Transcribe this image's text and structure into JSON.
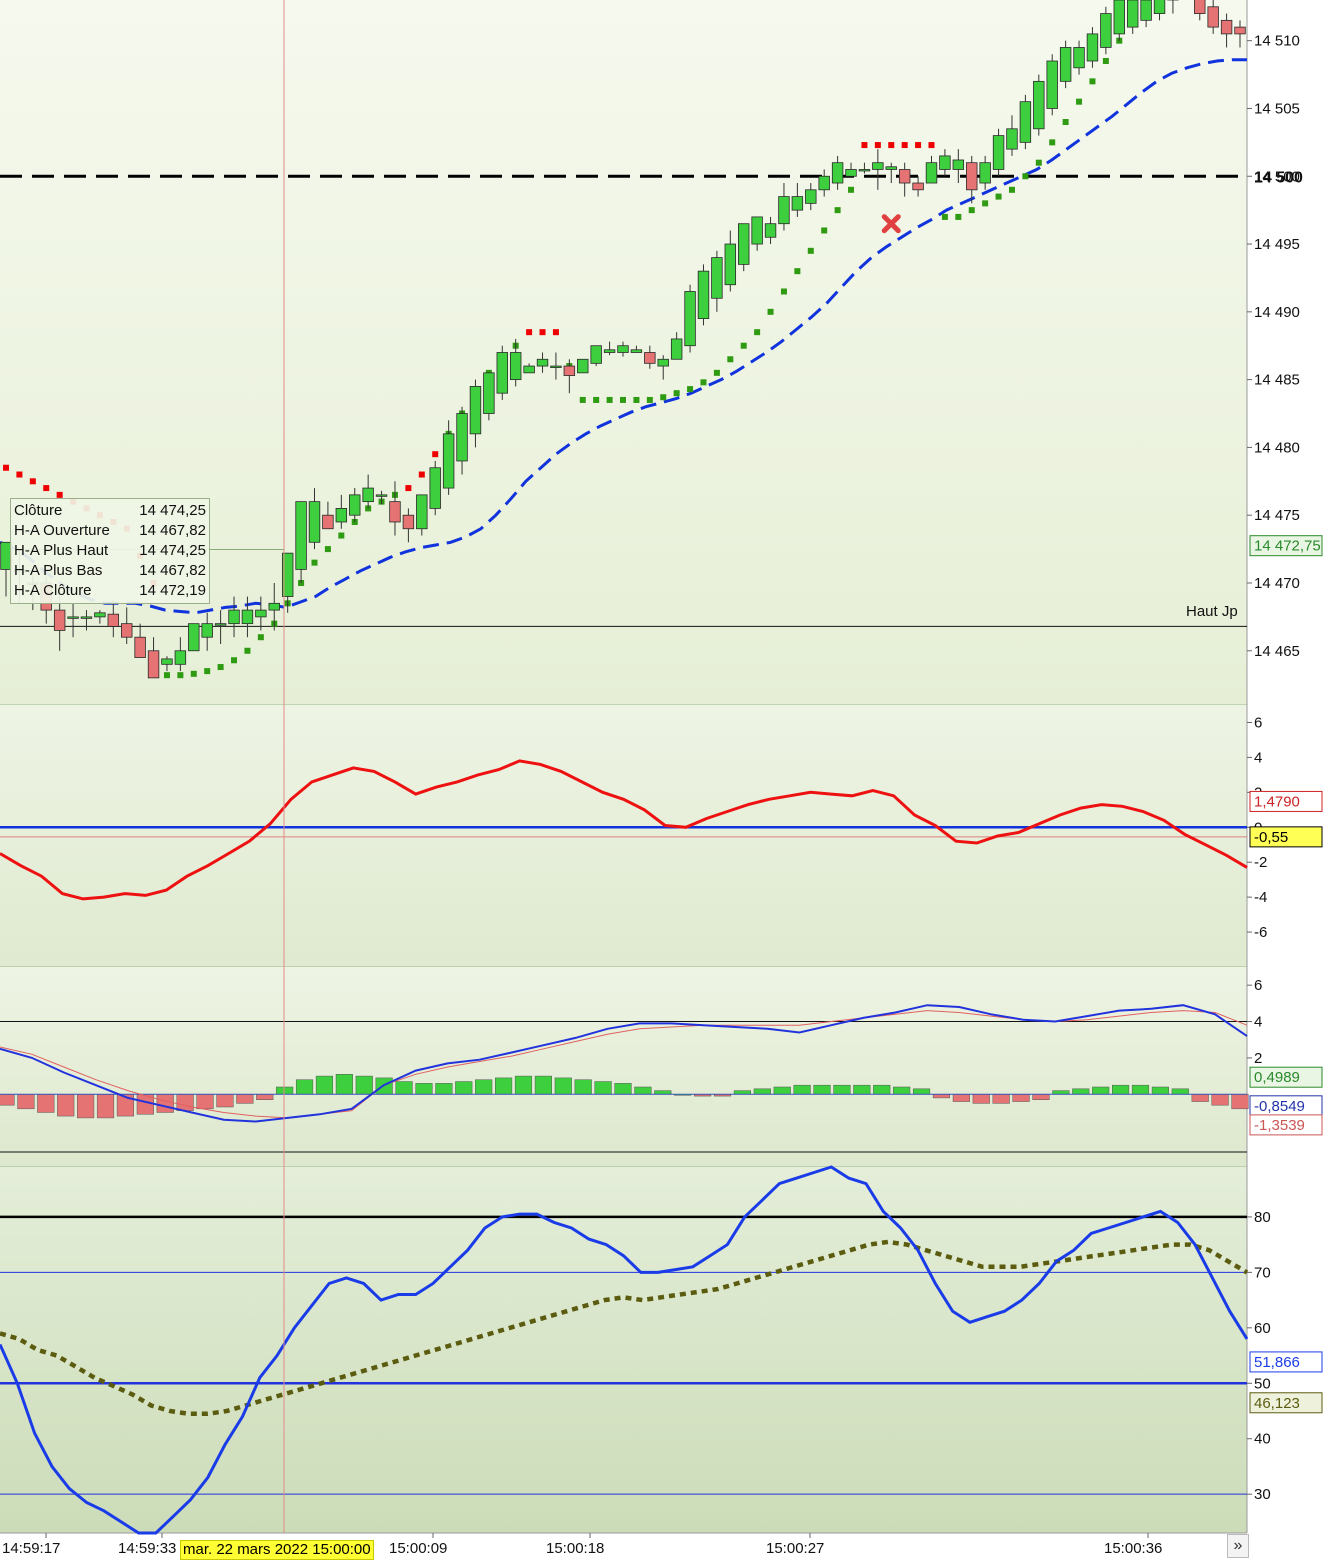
{
  "chart_data": [
    {
      "type": "candlestick",
      "name": "Heikin-Ashi price",
      "ylim": [
        14461,
        14513
      ],
      "yticks": [
        14465,
        14470,
        14475,
        14480,
        14485,
        14490,
        14495,
        14500,
        14505,
        14510
      ],
      "ytick_labels": [
        "14 465",
        "14 470",
        "14 475",
        "14 480",
        "14 485",
        "14 490",
        "14 495",
        "14 500",
        "14 505",
        "14 510"
      ],
      "bold_level": {
        "value": 14500,
        "label": "14 500"
      },
      "reference_level": {
        "value": 14466.8,
        "label": "Haut Jp"
      },
      "last_price_tag": "14 472,75",
      "candles": [
        [
          14471,
          14473,
          14469,
          14473
        ],
        [
          14471,
          14472.5,
          14468.5,
          14471
        ],
        [
          14470,
          14471,
          14468,
          14470
        ],
        [
          14470,
          14470.5,
          14467,
          14468
        ],
        [
          14468,
          14469,
          14465,
          14466.5
        ],
        [
          14467.5,
          14468.5,
          14466,
          14467.5
        ],
        [
          14467.5,
          14468,
          14466.5,
          14467.5
        ],
        [
          14467.5,
          14468,
          14467,
          14467.8
        ],
        [
          14467.7,
          14468.8,
          14466,
          14466.8
        ],
        [
          14467,
          14468.2,
          14465.5,
          14466
        ],
        [
          14466,
          14467,
          14464.5,
          14464.5
        ],
        [
          14465,
          14466,
          14463,
          14463
        ],
        [
          14464,
          14464.6,
          14463.5,
          14464.4
        ],
        [
          14464,
          14466,
          14463.5,
          14465
        ],
        [
          14465,
          14467,
          14465,
          14467
        ],
        [
          14466,
          14467.8,
          14465,
          14467
        ],
        [
          14467,
          14468,
          14465.5,
          14467
        ],
        [
          14467,
          14469,
          14466,
          14468
        ],
        [
          14467,
          14469,
          14466,
          14468
        ],
        [
          14467.5,
          14469,
          14466.5,
          14468
        ],
        [
          14468,
          14470,
          14466.5,
          14468.5
        ],
        [
          14469,
          14472,
          14467.8,
          14472.2
        ],
        [
          14471,
          14476,
          14470,
          14476
        ],
        [
          14473,
          14477,
          14472.5,
          14476
        ],
        [
          14475,
          14476,
          14474,
          14474
        ],
        [
          14474.5,
          14476.5,
          14474,
          14475.5
        ],
        [
          14475,
          14477,
          14474.5,
          14476.5
        ],
        [
          14476,
          14478,
          14475.5,
          14477
        ],
        [
          14476.5,
          14476.8,
          14475.8,
          14476.5
        ],
        [
          14476,
          14477.5,
          14473.5,
          14474.5
        ],
        [
          14475,
          14475.5,
          14473,
          14474
        ],
        [
          14474,
          14476.5,
          14473.5,
          14476.5
        ],
        [
          14475.5,
          14479,
          14475,
          14478.5
        ],
        [
          14477,
          14482,
          14476.5,
          14481
        ],
        [
          14479,
          14483,
          14478,
          14482.5
        ],
        [
          14481,
          14485,
          14480,
          14484.5
        ],
        [
          14482.5,
          14485.5,
          14482,
          14485.5
        ],
        [
          14484,
          14487.5,
          14483.5,
          14487
        ],
        [
          14485,
          14488,
          14484.5,
          14487
        ],
        [
          14485.5,
          14486.2,
          14485.5,
          14486
        ],
        [
          14486,
          14487,
          14485.5,
          14486.5
        ],
        [
          14486,
          14487,
          14485,
          14486
        ],
        [
          14486,
          14486.5,
          14484,
          14485.3
        ],
        [
          14485.5,
          14486.5,
          14485.5,
          14486.5
        ],
        [
          14486.2,
          14487.5,
          14486,
          14487.5
        ],
        [
          14487,
          14487.8,
          14486.8,
          14487.2
        ],
        [
          14487,
          14487.8,
          14486.7,
          14487.5
        ],
        [
          14487,
          14487.5,
          14487,
          14487.2
        ],
        [
          14487,
          14487.5,
          14485.8,
          14486.2
        ],
        [
          14486,
          14486.8,
          14485,
          14486.5
        ],
        [
          14486.5,
          14488.5,
          14486.5,
          14488
        ],
        [
          14487.5,
          14492,
          14487,
          14491.5
        ],
        [
          14489.5,
          14493.5,
          14489,
          14493
        ],
        [
          14491,
          14494.5,
          14490,
          14494
        ],
        [
          14492,
          14496,
          14491.5,
          14495
        ],
        [
          14493.5,
          14496.5,
          14493,
          14496.5
        ],
        [
          14495,
          14497,
          14494.5,
          14497
        ],
        [
          14495.5,
          14497,
          14495,
          14496.5
        ],
        [
          14496.5,
          14499.5,
          14496,
          14498.5
        ],
        [
          14497.5,
          14499.5,
          14497,
          14498.5
        ],
        [
          14498,
          14499.5,
          14497.5,
          14499
        ],
        [
          14499,
          14500.5,
          14498.5,
          14500
        ],
        [
          14499.5,
          14501.5,
          14499,
          14501
        ],
        [
          14500,
          14501,
          14500,
          14500.5
        ],
        [
          14500.5,
          14501,
          14500.2,
          14500.5
        ],
        [
          14500.5,
          14502,
          14499,
          14501
        ],
        [
          14500.5,
          14501,
          14499.5,
          14500.7
        ],
        [
          14500.5,
          14501,
          14498.5,
          14499.5
        ],
        [
          14499.5,
          14500,
          14498.5,
          14499
        ],
        [
          14499.5,
          14501.5,
          14499.5,
          14501
        ],
        [
          14500.5,
          14502,
          14500,
          14501.5
        ],
        [
          14500.5,
          14502,
          14499.5,
          14501.2
        ],
        [
          14501,
          14501.5,
          14498,
          14499
        ],
        [
          14499.5,
          14501.5,
          14499,
          14501
        ],
        [
          14500.5,
          14503.5,
          14500,
          14503
        ],
        [
          14502,
          14504.5,
          14501.5,
          14503.5
        ],
        [
          14502.5,
          14506,
          14502,
          14505.5
        ],
        [
          14503.5,
          14507.5,
          14503,
          14507
        ],
        [
          14505,
          14509,
          14504.5,
          14508.5
        ],
        [
          14507,
          14510,
          14506.5,
          14509.5
        ],
        [
          14508,
          14510,
          14507.5,
          14509.5
        ],
        [
          14508.5,
          14511,
          14508,
          14510.5
        ],
        [
          14509.5,
          14512.5,
          14509,
          14512
        ],
        [
          14510.5,
          14513,
          14510,
          14513
        ],
        [
          14511,
          14513,
          14510.5,
          14513
        ],
        [
          14511.5,
          14513.5,
          14511,
          14513
        ],
        [
          14512,
          14513.5,
          14511.5,
          14513.5
        ],
        [
          14513,
          14513.5,
          14512,
          14513.5
        ],
        [
          14513.5,
          14514,
          14513,
          14513.5
        ],
        [
          14513.5,
          14513.5,
          14511.5,
          14512
        ],
        [
          14512.5,
          14513,
          14510.5,
          14511
        ],
        [
          14511.5,
          14512,
          14509.5,
          14510.5
        ],
        [
          14511,
          14511.5,
          14509.5,
          14510.5
        ]
      ],
      "sar_values": [
        14478.5,
        14478,
        14477.5,
        14477,
        14476.5,
        14476,
        14475.5,
        14475,
        14474.5,
        14474,
        14472,
        14470,
        14463.2,
        14463.2,
        14463.3,
        14463.5,
        14463.8,
        14464.3,
        14465,
        14466,
        14467,
        14468.5,
        14470,
        14471.5,
        14472.5,
        14473.5,
        14474.5,
        14475.5,
        14476,
        14476.5,
        14477,
        14478,
        14479.5,
        14481,
        14482.5,
        14484,
        14485.5,
        14486.5,
        14487.5,
        14488.5,
        14488.5,
        14488.5,
        14486,
        14483.5,
        14483.5,
        14483.5,
        14483.5,
        14483.5,
        14483.5,
        14483.7,
        14484,
        14484.3,
        14484.8,
        14485.5,
        14486.5,
        14487.5,
        14488.5,
        14490,
        14491.5,
        14493,
        14494.5,
        14496,
        14497.5,
        14499,
        14502.3,
        14502.3,
        14502.3,
        14502.3,
        14502.3,
        14502.3,
        14497,
        14497,
        14497.5,
        14498,
        14498.5,
        14499,
        14500,
        14501,
        14502.5,
        14504,
        14505.5,
        14507,
        14508.5,
        14510,
        14511.5,
        14513,
        14514,
        14514,
        14514,
        14514,
        14514,
        14514,
        14514
      ],
      "moving_average": [
        14473,
        14472.5,
        14471.8,
        14470.8,
        14470,
        14469.3,
        14468.8,
        14468.5,
        14468.5,
        14468.5,
        14468.3,
        14468,
        14467.9,
        14467.8,
        14468,
        14468.2,
        14468.3,
        14468.5,
        14468.4,
        14468.2,
        14468.6,
        14469,
        14469.7,
        14470.3,
        14470.9,
        14471.4,
        14471.9,
        14472.3,
        14472.6,
        14472.8,
        14473,
        14473.4,
        14474,
        14475,
        14476.2,
        14477.5,
        14478.5,
        14479.5,
        14480.3,
        14481,
        14481.6,
        14482.1,
        14482.6,
        14483,
        14483.3,
        14483.6,
        14484,
        14484.5,
        14485,
        14485.6,
        14486.3,
        14487,
        14487.8,
        14488.7,
        14489.6,
        14490.6,
        14491.8,
        14493,
        14494,
        14494.8,
        14495.5,
        14496.2,
        14496.8,
        14497.5,
        14498,
        14498.5,
        14499,
        14499.5,
        14500,
        14500.5,
        14501.2,
        14502,
        14502.8,
        14503.6,
        14504.4,
        14505.3,
        14506.2,
        14507,
        14507.6,
        14508,
        14508.3,
        14508.5,
        14508.6,
        14508.6
      ],
      "sell_marker": {
        "index": 66,
        "value": 14496.5
      },
      "tooltip": [
        {
          "label": "Clôture",
          "value": "14 474,25"
        },
        {
          "label": "H-A Ouverture",
          "value": "14 467,82"
        },
        {
          "label": "H-A Plus Haut",
          "value": "14 474,25"
        },
        {
          "label": "H-A Plus Bas",
          "value": "14 467,82"
        },
        {
          "label": "H-A Clôture",
          "value": "14 472,19"
        }
      ]
    },
    {
      "type": "line",
      "name": "Oscillator",
      "ylim": [
        -8,
        7
      ],
      "yticks": [
        6,
        4,
        2,
        0,
        -2,
        -4,
        -6
      ],
      "ytick_labels": [
        "6",
        "4",
        "2",
        "0",
        "-2",
        "-4",
        "-6"
      ],
      "zero_line": -0.55,
      "values": [
        -1.5,
        -2.2,
        -2.8,
        -3.8,
        -4.1,
        -4.0,
        -3.8,
        -3.9,
        -3.6,
        -2.8,
        -2.2,
        -1.5,
        -0.8,
        0.2,
        1.6,
        2.6,
        3.0,
        3.4,
        3.2,
        2.6,
        1.9,
        2.3,
        2.6,
        3.0,
        3.3,
        3.8,
        3.6,
        3.2,
        2.6,
        2.0,
        1.6,
        1.0,
        0.1,
        0.0,
        0.5,
        0.9,
        1.3,
        1.6,
        1.8,
        2.0,
        1.9,
        1.8,
        2.1,
        1.8,
        0.7,
        0.1,
        -0.8,
        -0.9,
        -0.5,
        -0.3,
        0.2,
        0.7,
        1.1,
        1.3,
        1.2,
        0.9,
        0.4,
        -0.4,
        -1.0,
        -1.6,
        -2.3
      ],
      "value_tags": [
        "1,4790",
        "-0,55"
      ]
    },
    {
      "type": "bar",
      "name": "MACD",
      "ylim": [
        -4,
        7
      ],
      "yticks": [
        6,
        4,
        2
      ],
      "ytick_labels": [
        "6",
        "4",
        "2"
      ],
      "upper_line": 4,
      "histogram": [
        -0.6,
        -0.8,
        -1.0,
        -1.2,
        -1.3,
        -1.3,
        -1.2,
        -1.1,
        -1.0,
        -0.9,
        -0.8,
        -0.7,
        -0.5,
        -0.3,
        0.4,
        0.8,
        1.0,
        1.1,
        1.0,
        0.9,
        0.7,
        0.6,
        0.6,
        0.7,
        0.8,
        0.9,
        1.0,
        1.0,
        0.9,
        0.8,
        0.7,
        0.6,
        0.4,
        0.2,
        0.0,
        -0.1,
        -0.1,
        0.2,
        0.3,
        0.4,
        0.5,
        0.5,
        0.5,
        0.5,
        0.5,
        0.4,
        0.3,
        -0.2,
        -0.4,
        -0.5,
        -0.5,
        -0.4,
        -0.3,
        0.2,
        0.3,
        0.4,
        0.5,
        0.5,
        0.4,
        0.3,
        -0.4,
        -0.6,
        -0.8
      ],
      "macd_line": [
        2.5,
        2.0,
        1.2,
        0.5,
        -0.2,
        -0.6,
        -1.0,
        -1.4,
        -1.5,
        -1.3,
        -1.1,
        -0.8,
        0.5,
        1.3,
        1.7,
        1.9,
        2.3,
        2.7,
        3.1,
        3.6,
        3.9,
        3.9,
        3.8,
        3.7,
        3.6,
        3.4,
        3.8,
        4.2,
        4.5,
        4.9,
        4.8,
        4.4,
        4.1,
        4.0,
        4.3,
        4.6,
        4.7,
        4.9,
        4.4,
        3.2
      ],
      "signal_line": [
        2.6,
        2.2,
        1.5,
        0.8,
        0.2,
        -0.3,
        -0.7,
        -1.0,
        -1.2,
        -1.3,
        -1.1,
        -0.9,
        0.5,
        1.1,
        1.5,
        1.8,
        2.1,
        2.5,
        2.9,
        3.3,
        3.6,
        3.7,
        3.8,
        3.8,
        3.8,
        3.8,
        4.0,
        4.2,
        4.4,
        4.6,
        4.5,
        4.3,
        4.1,
        4.0,
        4.1,
        4.3,
        4.5,
        4.6,
        4.5,
        3.8
      ],
      "value_tags": [
        "0,4989",
        "-0,8549",
        "-1,3539"
      ]
    },
    {
      "type": "line",
      "name": "Stochastic",
      "ylim": [
        23,
        89
      ],
      "yticks": [
        80,
        70,
        60,
        50,
        40,
        30
      ],
      "ytick_labels": [
        "80",
        "70",
        "60",
        "50",
        "40",
        "30"
      ],
      "levels": [
        80,
        70,
        50,
        30
      ],
      "fast": [
        57,
        50,
        41,
        35,
        31,
        28.5,
        27,
        25,
        23,
        23,
        26,
        29,
        33,
        39,
        44,
        51,
        55,
        60,
        64,
        68,
        69,
        68,
        65,
        66,
        66,
        68,
        71,
        74,
        78,
        80,
        80.5,
        80.5,
        79,
        78,
        76,
        75,
        73,
        70,
        70,
        70.5,
        71,
        73,
        75,
        80,
        83,
        86,
        87,
        88,
        89,
        87,
        86,
        81,
        78,
        74,
        68,
        63,
        61,
        62,
        63,
        65,
        68,
        72,
        74,
        77,
        78,
        79,
        80,
        81,
        79,
        75,
        69,
        63,
        58
      ],
      "slow": [
        59,
        58,
        56,
        55,
        53,
        51,
        49.5,
        48,
        46,
        45,
        44.5,
        44.5,
        45,
        46,
        47,
        48,
        49,
        50,
        51,
        52,
        53,
        54,
        55,
        56,
        57,
        58,
        59,
        60,
        61,
        62,
        63,
        64,
        65,
        65.5,
        65,
        65.5,
        66,
        66.5,
        67,
        68,
        69,
        70,
        71,
        72,
        73,
        74,
        75,
        75.5,
        75,
        74,
        73,
        72,
        71,
        71,
        71,
        71.5,
        72,
        72.5,
        73,
        73.5,
        74,
        74.5,
        75,
        75,
        74,
        72,
        70
      ],
      "value_tags": [
        "51,866",
        "46,123"
      ]
    }
  ],
  "x_axis": {
    "labels": [
      "14:59:17",
      "14:59:33",
      "15:00:09",
      "15:00:18",
      "15:00:27",
      "15:00:36"
    ],
    "label_positions_are_layout": true
  },
  "crosshair_label": "mar. 22 mars 2022 15:00:00",
  "more_button": "»",
  "colors": {
    "up_candle": "#3ecf3e",
    "down_candle": "#e57373",
    "sar": "#2e9b12",
    "sar_resistance": "#ee0000",
    "moving_average": "#1133dd",
    "oscillator": "#ee1111",
    "zero_line": "#1133dd",
    "macd_line": "#2233dd",
    "signal_line": "#e06060",
    "fast": "#1a3be8",
    "slow": "#5c5c10"
  }
}
